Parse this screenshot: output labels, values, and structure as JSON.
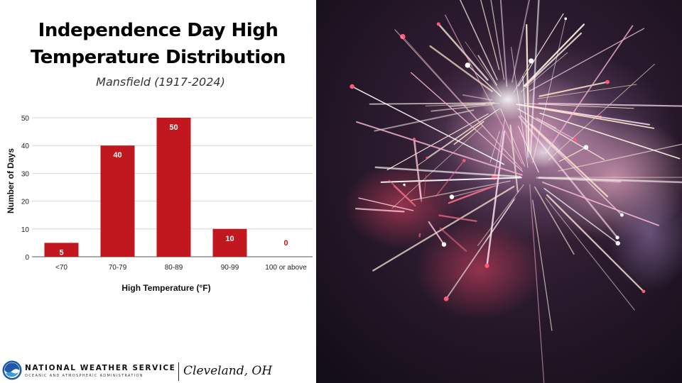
{
  "title_lines": [
    "Independence Day High",
    "Temperature Distribution"
  ],
  "subtitle": "Mansfield (1917-2024)",
  "chart_data": {
    "type": "bar",
    "categories": [
      "<70",
      "70-79",
      "80-89",
      "90-99",
      "100 or above"
    ],
    "values": [
      5,
      40,
      50,
      10,
      0
    ],
    "data_labels": [
      "5",
      "40",
      "50",
      "10",
      "0"
    ],
    "xlabel": "High Temperature (°F)",
    "ylabel": "Number of Days",
    "ylim": [
      0,
      50
    ],
    "yticks": [
      0,
      10,
      20,
      30,
      40,
      50
    ],
    "grid": true,
    "bar_color": "#c0181e",
    "label_color_on_bar": "#ffffff",
    "label_color_zero": "#c0181e"
  },
  "footer": {
    "agency": "NATIONAL WEATHER SERVICE",
    "agency_sub": "OCEANIC AND ATMOSPHERIC ADMINISTRATION",
    "office": "Cleveland, OH",
    "logo_icon": "noaa-logo-icon"
  },
  "photo": {
    "icon": "fireworks-photo",
    "background_color": "#1a1420"
  }
}
